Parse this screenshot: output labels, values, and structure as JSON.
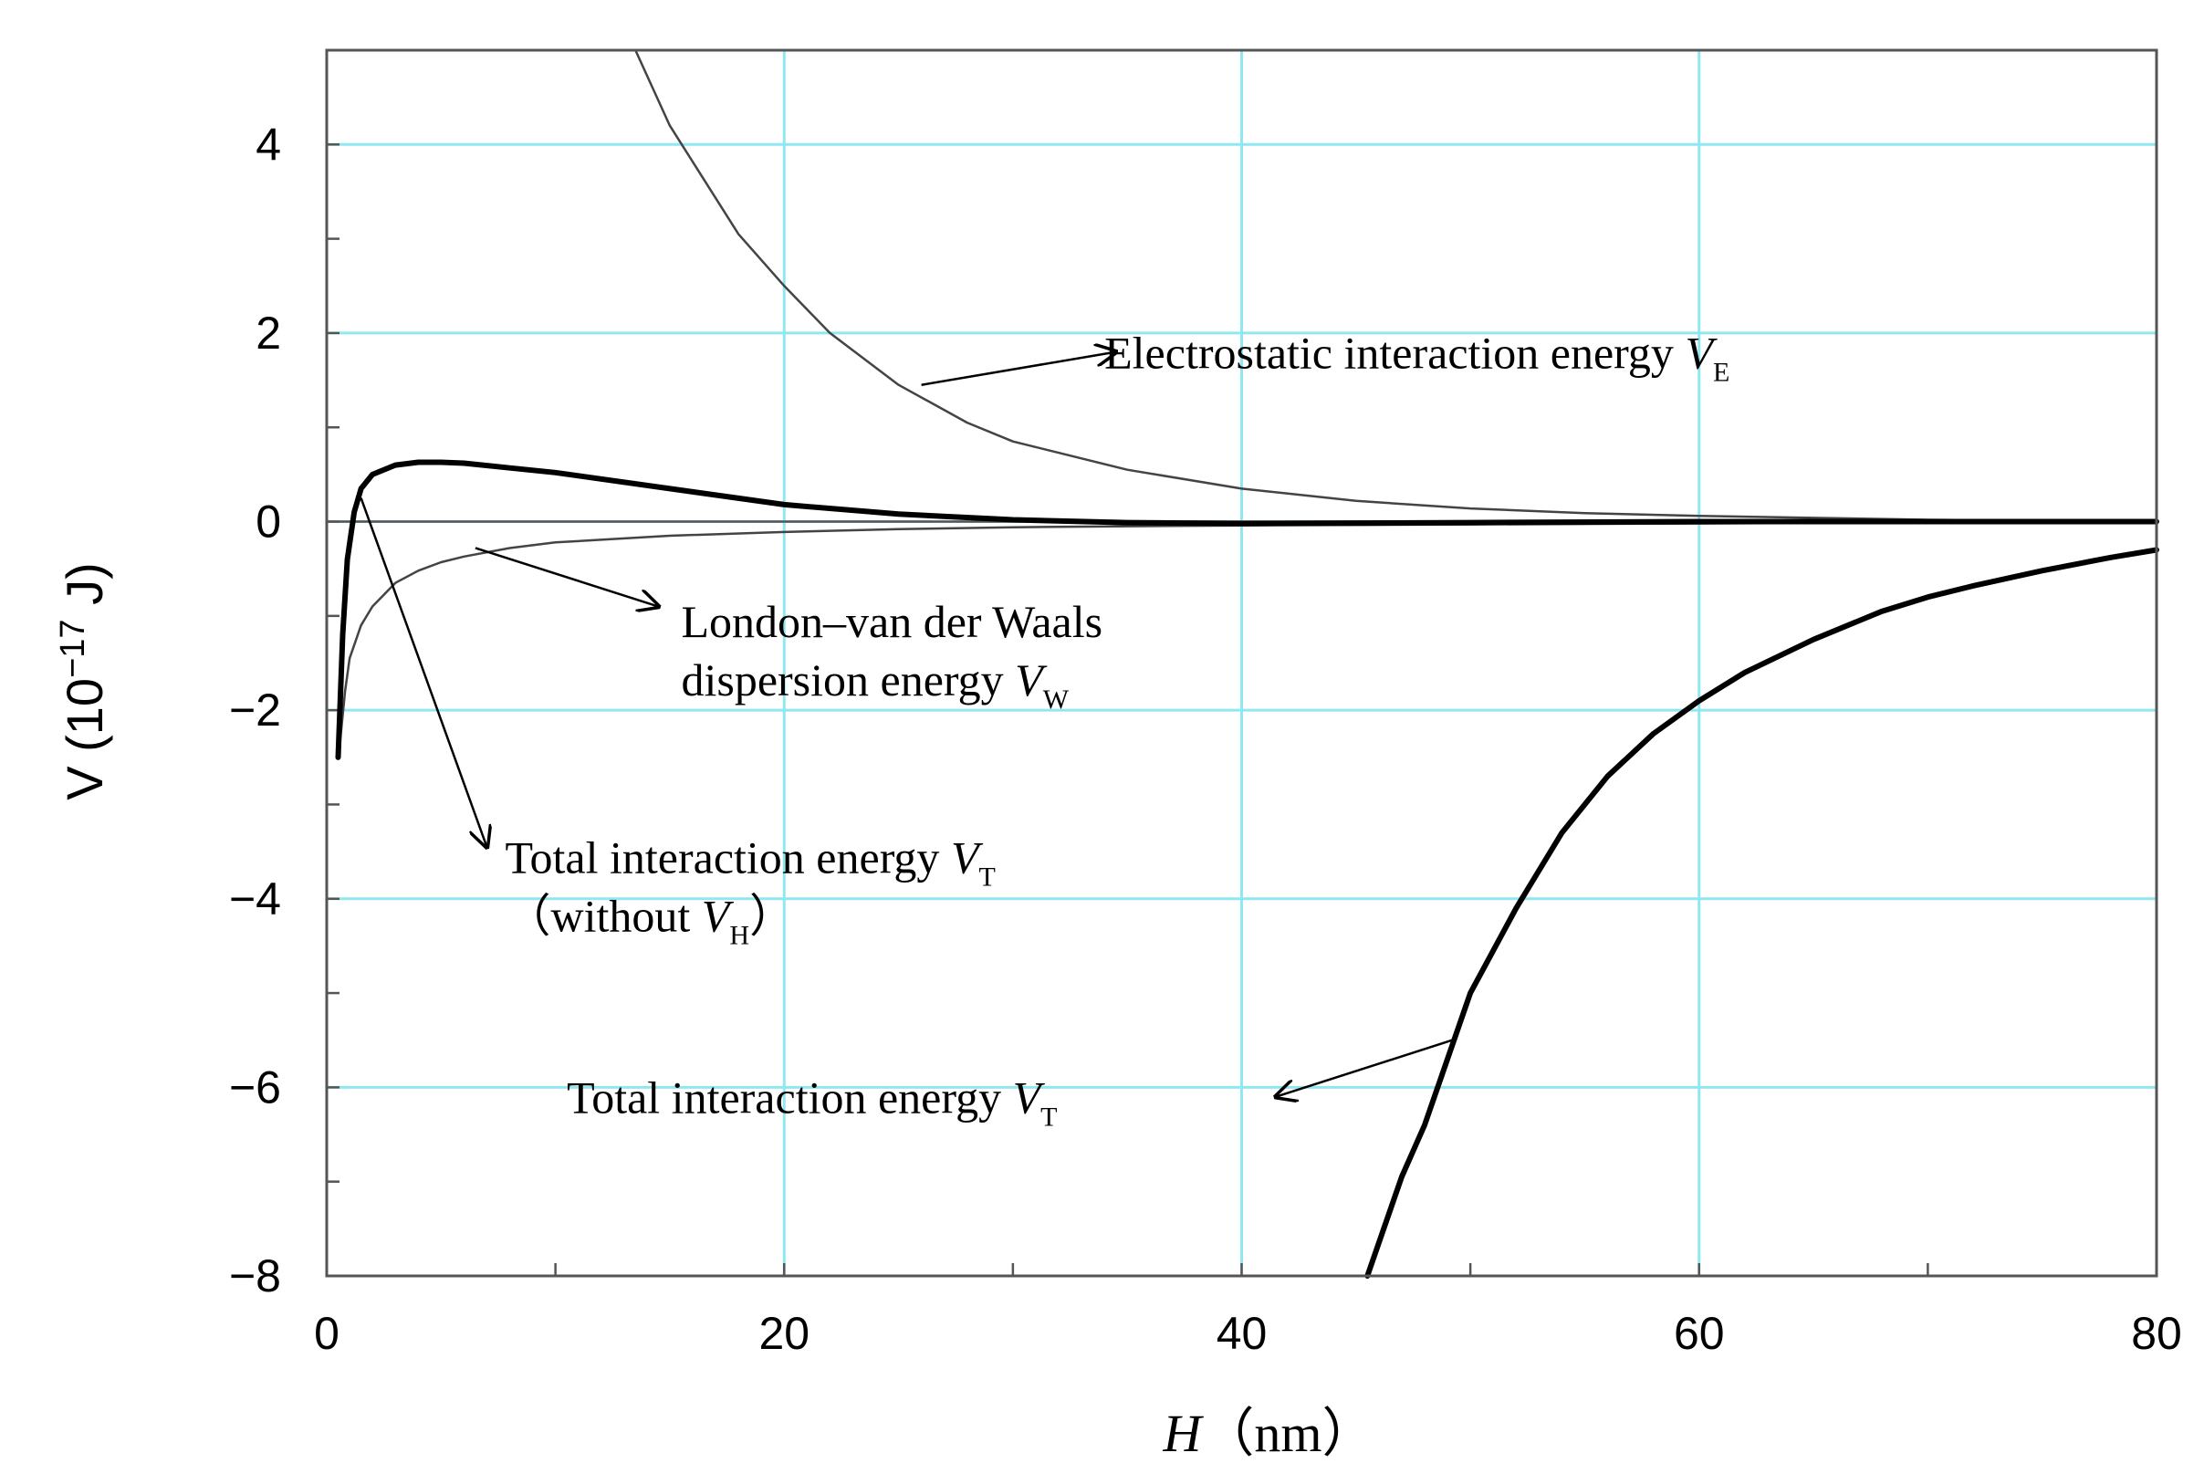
{
  "chart_data": {
    "type": "line",
    "title": "",
    "xlabel": {
      "var": "H",
      "unit": "（nm）"
    },
    "ylabel": {
      "prefix": "V (10",
      "exp": "−17",
      "suffix": " J)"
    },
    "xlim": [
      0,
      80
    ],
    "ylim": [
      -8,
      5
    ],
    "x_ticks": [
      0,
      20,
      40,
      60,
      80
    ],
    "x_tick_labels": [
      "0",
      "20",
      "40",
      "60",
      "80"
    ],
    "y_ticks": [
      4,
      2,
      0,
      -2,
      -4,
      -6,
      -8
    ],
    "y_tick_labels": [
      "4",
      "2",
      "0",
      "−2",
      "−4",
      "−6",
      "−8"
    ],
    "grid": true,
    "series": [
      {
        "name": "Electrostatic interaction energy VE",
        "style": "thin",
        "x": [
          13.5,
          15,
          18,
          20,
          22,
          25,
          28,
          30,
          35,
          40,
          45,
          50,
          55,
          60,
          65,
          70,
          75,
          80
        ],
        "y": [
          5.0,
          4.2,
          3.05,
          2.5,
          2.0,
          1.45,
          1.05,
          0.85,
          0.55,
          0.35,
          0.22,
          0.14,
          0.09,
          0.06,
          0.04,
          0.02,
          0.01,
          0.0
        ]
      },
      {
        "name": "London–van der Waals dispersion energy VW",
        "style": "thin",
        "x": [
          0.6,
          0.8,
          1,
          1.5,
          2,
          3,
          4,
          5,
          6,
          8,
          10,
          15,
          20,
          25,
          30,
          40,
          50,
          60,
          70,
          80
        ],
        "y": [
          -2.3,
          -1.8,
          -1.45,
          -1.1,
          -0.9,
          -0.65,
          -0.52,
          -0.43,
          -0.37,
          -0.28,
          -0.22,
          -0.15,
          -0.11,
          -0.08,
          -0.06,
          -0.04,
          -0.03,
          -0.02,
          -0.01,
          -0.01
        ]
      },
      {
        "name": "Total interaction energy VT (without VH)",
        "style": "thick",
        "x": [
          0.5,
          0.7,
          0.9,
          1.2,
          1.5,
          2,
          3,
          4,
          5,
          6,
          8,
          10,
          15,
          20,
          25,
          30,
          35,
          40,
          50,
          60,
          70,
          80
        ],
        "y": [
          -2.5,
          -1.2,
          -0.4,
          0.1,
          0.35,
          0.5,
          0.6,
          0.63,
          0.63,
          0.62,
          0.57,
          0.52,
          0.35,
          0.18,
          0.08,
          0.02,
          -0.01,
          -0.02,
          -0.01,
          0.0,
          0.0,
          0.0
        ]
      },
      {
        "name": "Total interaction energy VT",
        "style": "thick",
        "x": [
          45.5,
          47,
          48,
          50,
          52,
          54,
          56,
          58,
          60,
          62,
          65,
          68,
          70,
          72,
          75,
          78,
          80
        ],
        "y": [
          -8.0,
          -6.95,
          -6.4,
          -5.0,
          -4.1,
          -3.3,
          -2.7,
          -2.25,
          -1.9,
          -1.6,
          -1.25,
          -0.95,
          -0.8,
          -0.68,
          -0.52,
          -0.38,
          -0.3
        ]
      }
    ],
    "annotations": [
      {
        "lines": [
          {
            "text": "Electrostatic interaction energy ",
            "var": "V",
            "sub": "E"
          }
        ],
        "text_x": 34,
        "text_y": 1.8,
        "arrow_from": [
          26,
          1.45
        ],
        "arrow_to": [
          34.5,
          1.8
        ]
      },
      {
        "lines": [
          {
            "text": "London–van der Waals",
            "var": "",
            "sub": ""
          },
          {
            "text": "dispersion energy ",
            "var": "V",
            "sub": "W"
          }
        ],
        "text_x": 15.5,
        "text_y": -1.05,
        "arrow_from": [
          6.5,
          -0.28
        ],
        "arrow_to": [
          14.5,
          -0.9
        ]
      },
      {
        "lines": [
          {
            "text": "Total interaction energy ",
            "var": "V",
            "sub": "T"
          },
          {
            "text": "（without ",
            "var": "V",
            "sub": "H",
            "tail": "）"
          }
        ],
        "text_x": 7.8,
        "text_y": -3.55,
        "arrow_from": [
          1.5,
          0.25
        ],
        "arrow_to": [
          7,
          -3.45
        ]
      },
      {
        "lines": [
          {
            "text": "Total interaction energy ",
            "var": "V",
            "sub": "T"
          }
        ],
        "text_x": 10.5,
        "text_y": -6.1,
        "arrow_from": [
          49.2,
          -5.5
        ],
        "arrow_to": [
          41.5,
          -6.1
        ]
      }
    ]
  }
}
